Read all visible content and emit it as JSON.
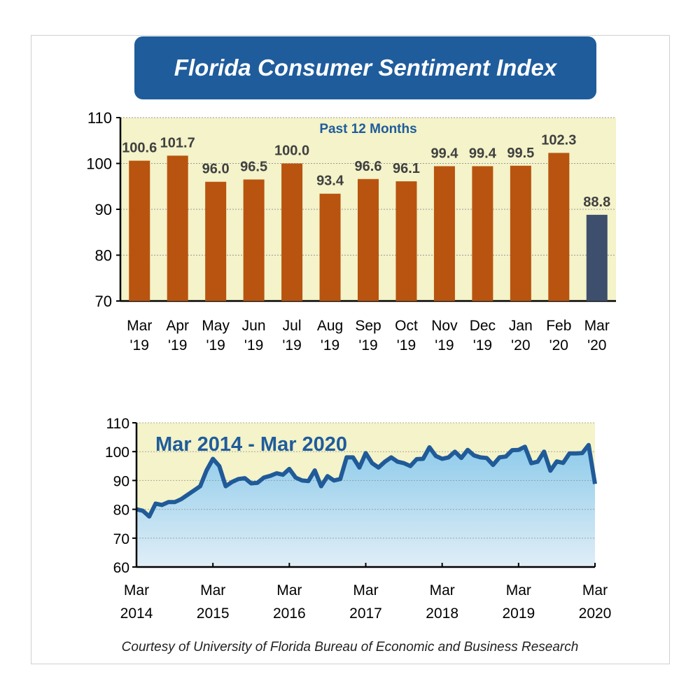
{
  "title": "Florida Consumer Sentiment Index",
  "credit": "Courtesy of University of Florida Bureau of Economic and Business Research",
  "colors": {
    "banner": "#1f5c9c",
    "bar": "#b8540f",
    "bar_latest": "#3e4f6d",
    "plot_bg": "#f4f3c9",
    "line": "#205a98",
    "area_top": "#8ecbea",
    "area_bottom": "#e0eef7"
  },
  "chart_data": [
    {
      "type": "bar",
      "title": "Past 12 Months",
      "categories": [
        [
          "Mar",
          "'19"
        ],
        [
          "Apr",
          "'19"
        ],
        [
          "May",
          "'19"
        ],
        [
          "Jun",
          "'19"
        ],
        [
          "Jul",
          "'19"
        ],
        [
          "Aug",
          "'19"
        ],
        [
          "Sep",
          "'19"
        ],
        [
          "Oct",
          "'19"
        ],
        [
          "Nov",
          "'19"
        ],
        [
          "Dec",
          "'19"
        ],
        [
          "Jan",
          "'20"
        ],
        [
          "Feb",
          "'20"
        ],
        [
          "Mar",
          "'20"
        ]
      ],
      "values": [
        100.6,
        101.7,
        96.0,
        96.5,
        100.0,
        93.4,
        96.6,
        96.1,
        99.4,
        99.4,
        99.5,
        102.3,
        88.8
      ],
      "data_labels": [
        "100.6",
        "101.7",
        "96.0",
        "96.5",
        "100.0",
        "93.4",
        "96.6",
        "96.1",
        "99.4",
        "99.4",
        "99.5",
        "102.3",
        "88.8"
      ],
      "ylim": [
        70,
        110
      ],
      "yticks": [
        70,
        80,
        90,
        100,
        110
      ],
      "grid": true
    },
    {
      "type": "area",
      "title": "Mar 2014 - Mar 2020",
      "x_start": "Mar 2014",
      "x_end": "Mar 2020",
      "frequency": "monthly",
      "xticks": [
        [
          "Mar",
          "2014"
        ],
        [
          "Mar",
          "2015"
        ],
        [
          "Mar",
          "2016"
        ],
        [
          "Mar",
          "2017"
        ],
        [
          "Mar",
          "2018"
        ],
        [
          "Mar",
          "2019"
        ],
        [
          "Mar",
          "2020"
        ]
      ],
      "values": [
        80,
        79.5,
        77.5,
        82,
        81.5,
        82.5,
        82.5,
        83.5,
        85,
        86.5,
        88,
        93.5,
        97.5,
        95,
        88,
        89.5,
        90.5,
        90.8,
        89,
        89.2,
        91,
        91.6,
        92.5,
        92,
        94,
        91,
        90,
        89.8,
        93.5,
        88,
        91.5,
        90,
        90.5,
        98,
        98,
        94.5,
        99.5,
        96,
        94.5,
        96.5,
        98,
        96.5,
        96,
        95,
        97.4,
        97.5,
        101.5,
        98.5,
        97.5,
        98,
        100,
        97.8,
        100.6,
        98.7,
        98,
        97.8,
        95.4,
        98,
        98.3,
        100.5,
        100.6,
        101.7,
        96,
        96.5,
        100,
        93.4,
        96.6,
        96.1,
        99.4,
        99.4,
        99.5,
        102.3,
        88.8
      ],
      "ylim": [
        60,
        110
      ],
      "yticks": [
        60,
        70,
        80,
        90,
        100,
        110
      ],
      "grid": true
    }
  ]
}
